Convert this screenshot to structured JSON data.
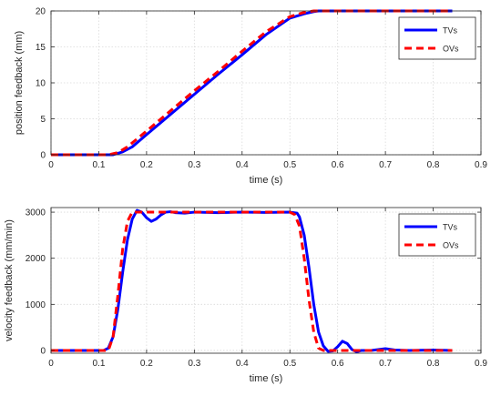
{
  "chart_data": [
    {
      "type": "line",
      "xlabel": "time (s)",
      "ylabel": "position feedback (mm)",
      "xlim": [
        0,
        0.9
      ],
      "ylim": [
        0,
        20
      ],
      "xticks": [
        "0",
        "0.1",
        "0.2",
        "0.3",
        "0.4",
        "0.5",
        "0.6",
        "0.7",
        "0.8",
        "0.9"
      ],
      "yticks": [
        "0",
        "5",
        "10",
        "15",
        "20"
      ],
      "grid": true,
      "legend_position": "top-right",
      "series": [
        {
          "name": "TVs",
          "color": "#0000ff",
          "style": "solid",
          "x": [
            0,
            0.13,
            0.15,
            0.17,
            0.2,
            0.25,
            0.3,
            0.35,
            0.4,
            0.45,
            0.5,
            0.53,
            0.55,
            0.56,
            0.58,
            0.6,
            0.7,
            0.84
          ],
          "y": [
            0,
            0,
            0.4,
            1.1,
            2.8,
            5.6,
            8.4,
            11.2,
            13.9,
            16.7,
            19.0,
            19.6,
            19.9,
            20,
            20,
            20,
            20,
            20
          ]
        },
        {
          "name": "OVs",
          "color": "#ff0000",
          "style": "dashed",
          "x": [
            0,
            0.12,
            0.14,
            0.16,
            0.2,
            0.25,
            0.3,
            0.35,
            0.4,
            0.45,
            0.5,
            0.53,
            0.55,
            0.57,
            0.6,
            0.7,
            0.84
          ],
          "y": [
            0,
            0,
            0.3,
            1.1,
            3.3,
            6.1,
            8.9,
            11.6,
            14.4,
            17.1,
            19.2,
            19.8,
            20,
            20,
            20,
            20,
            20
          ]
        }
      ]
    },
    {
      "type": "line",
      "xlabel": "time (s)",
      "ylabel": "velocity feedback (mm/min)",
      "xlim": [
        0,
        0.9
      ],
      "ylim": [
        -60,
        3100
      ],
      "xticks": [
        "0",
        "0.1",
        "0.2",
        "0.3",
        "0.4",
        "0.5",
        "0.6",
        "0.7",
        "0.8",
        "0.9"
      ],
      "yticks": [
        "0",
        "1000",
        "2000",
        "3000"
      ],
      "grid": true,
      "legend_position": "top-right",
      "series": [
        {
          "name": "TVs",
          "color": "#0000ff",
          "style": "solid",
          "x": [
            0,
            0.11,
            0.12,
            0.13,
            0.14,
            0.15,
            0.16,
            0.17,
            0.18,
            0.19,
            0.2,
            0.21,
            0.22,
            0.23,
            0.24,
            0.25,
            0.26,
            0.28,
            0.3,
            0.35,
            0.4,
            0.45,
            0.5,
            0.515,
            0.52,
            0.53,
            0.54,
            0.55,
            0.56,
            0.57,
            0.58,
            0.59,
            0.6,
            0.61,
            0.62,
            0.63,
            0.64,
            0.65,
            0.67,
            0.7,
            0.72,
            0.75,
            0.8,
            0.84
          ],
          "y": [
            0,
            0,
            50,
            300,
            900,
            1700,
            2400,
            2850,
            3040,
            3000,
            2880,
            2800,
            2850,
            2940,
            3000,
            3010,
            2990,
            2980,
            3000,
            2990,
            3000,
            2995,
            3000,
            2980,
            2900,
            2500,
            1800,
            1000,
            400,
            100,
            -20,
            -10,
            80,
            200,
            150,
            20,
            -30,
            0,
            0,
            40,
            10,
            0,
            10,
            0
          ]
        },
        {
          "name": "OVs",
          "color": "#ff0000",
          "style": "dashed",
          "x": [
            0,
            0.12,
            0.13,
            0.14,
            0.15,
            0.16,
            0.17,
            0.18,
            0.5,
            0.51,
            0.52,
            0.53,
            0.54,
            0.55,
            0.56,
            0.57,
            0.6,
            0.7,
            0.84
          ],
          "y": [
            0,
            0,
            300,
            1200,
            2200,
            2800,
            3000,
            3000,
            3000,
            2950,
            2700,
            2000,
            1100,
            400,
            50,
            0,
            0,
            0,
            0
          ]
        }
      ]
    }
  ]
}
